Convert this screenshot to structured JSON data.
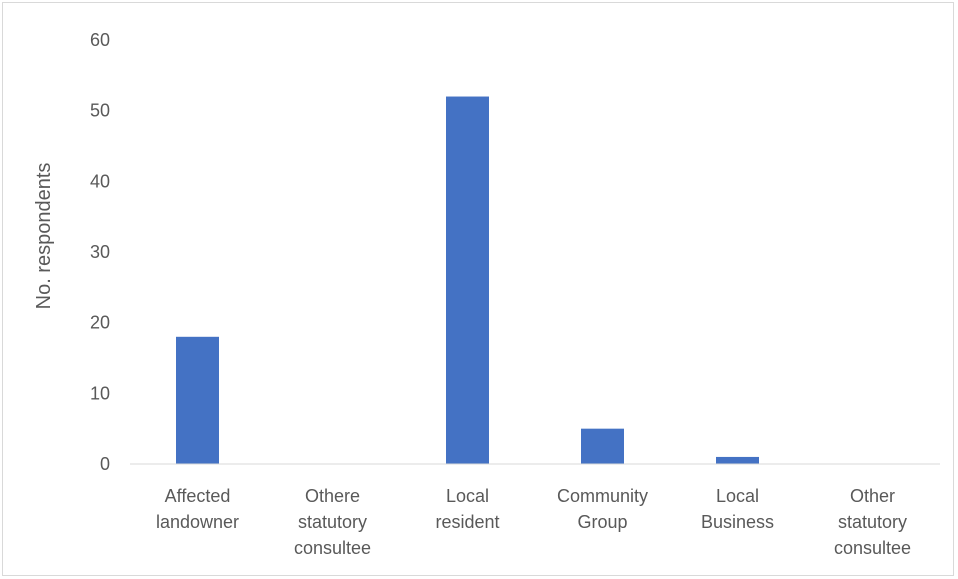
{
  "chart_data": {
    "type": "bar",
    "title": "",
    "xlabel": "",
    "ylabel": "No. respondents",
    "ylim": [
      0,
      60
    ],
    "yticks": [
      0,
      10,
      20,
      30,
      40,
      50,
      60
    ],
    "grid": false,
    "categories": [
      [
        "Affected",
        "landowner"
      ],
      [
        "Othere",
        "statutory",
        "consultee"
      ],
      [
        "Local",
        "resident"
      ],
      [
        "Community",
        "Group"
      ],
      [
        "Local",
        "Business"
      ],
      [
        "Other",
        "statutory",
        "consultee"
      ]
    ],
    "values": [
      18,
      0,
      52,
      5,
      1,
      0
    ],
    "bar_color": "#4472c4"
  }
}
